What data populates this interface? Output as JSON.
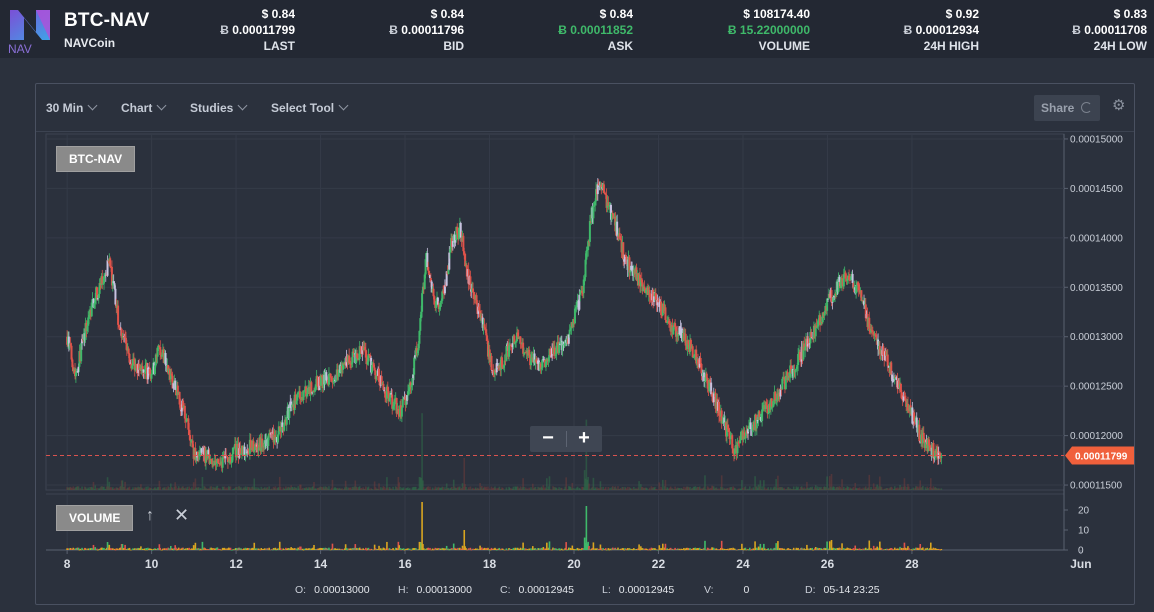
{
  "header": {
    "pair": "BTC-NAV",
    "coin": "NAVCoin",
    "logo_text": "NAV",
    "btc_symbol": "Ƀ",
    "stats": [
      {
        "usd": "$ 0.84",
        "btc": "0.00011799",
        "label": "LAST",
        "green": false
      },
      {
        "usd": "$ 0.84",
        "btc": "0.00011796",
        "label": "BID",
        "green": false
      },
      {
        "usd": "$ 0.84",
        "btc": "0.00011852",
        "label": "ASK",
        "green": true
      },
      {
        "usd": "$ 108174.40",
        "btc": "15.22000000",
        "label": "VOLUME",
        "green": true
      },
      {
        "usd": "$ 0.92",
        "btc": "0.00012934",
        "label": "24H HIGH",
        "green": false
      },
      {
        "usd": "$ 0.83",
        "btc": "0.00011708",
        "label": "24H LOW",
        "green": false
      }
    ]
  },
  "toolbar": {
    "interval": "30 Min",
    "chart": "Chart",
    "studies": "Studies",
    "select_tool": "Select Tool",
    "share": "Share"
  },
  "chart_data": {
    "type": "candlestick",
    "series_label": "BTC-NAV",
    "volume_label": "VOLUME",
    "last_price": 0.00011799,
    "last_price_label": "0.00011799",
    "ylim": [
      0.0001145,
      0.0001505
    ],
    "y_ticks": [
      "0.00011500",
      "0.00012000",
      "0.00012500",
      "0.00013000",
      "0.00013500",
      "0.00014000",
      "0.00014500",
      "0.00015000"
    ],
    "y_tick_values": [
      0.000115,
      0.00012,
      0.000125,
      0.00013,
      0.000135,
      0.00014,
      0.000145,
      0.00015
    ],
    "volume_ylim": [
      0,
      24
    ],
    "volume_ticks": [
      "0",
      "10",
      "20"
    ],
    "volume_tick_values": [
      0,
      10,
      20
    ],
    "x_range_days": [
      7.5,
      31.6
    ],
    "x_ticks": [
      "8",
      "10",
      "12",
      "14",
      "16",
      "18",
      "20",
      "22",
      "24",
      "26",
      "28",
      "Jun"
    ],
    "x_tick_days": [
      8,
      10,
      12,
      14,
      16,
      18,
      20,
      22,
      24,
      26,
      28,
      32
    ],
    "price_path": [
      [
        8.0,
        0.00013
      ],
      [
        8.2,
        0.0001262
      ],
      [
        8.4,
        0.00013
      ],
      [
        8.6,
        0.0001335
      ],
      [
        8.8,
        0.0001352
      ],
      [
        9.0,
        0.0001375
      ],
      [
        9.2,
        0.000132
      ],
      [
        9.5,
        0.0001275
      ],
      [
        10.0,
        0.0001262
      ],
      [
        10.2,
        0.000129
      ],
      [
        10.5,
        0.0001255
      ],
      [
        10.8,
        0.000122
      ],
      [
        11.0,
        0.000118
      ],
      [
        11.3,
        0.000118
      ],
      [
        11.6,
        0.000117
      ],
      [
        12.0,
        0.0001185
      ],
      [
        12.5,
        0.000119
      ],
      [
        13.0,
        0.00012
      ],
      [
        13.3,
        0.000123
      ],
      [
        13.6,
        0.0001245
      ],
      [
        14.0,
        0.0001255
      ],
      [
        14.3,
        0.000126
      ],
      [
        14.6,
        0.0001275
      ],
      [
        15.0,
        0.0001285
      ],
      [
        15.3,
        0.0001265
      ],
      [
        15.6,
        0.000124
      ],
      [
        15.9,
        0.0001225
      ],
      [
        16.1,
        0.0001245
      ],
      [
        16.3,
        0.000129
      ],
      [
        16.5,
        0.000138
      ],
      [
        16.7,
        0.000133
      ],
      [
        16.9,
        0.000134
      ],
      [
        17.1,
        0.0001395
      ],
      [
        17.3,
        0.000141
      ],
      [
        17.5,
        0.000136
      ],
      [
        17.7,
        0.000133
      ],
      [
        17.9,
        0.00013
      ],
      [
        18.1,
        0.000126
      ],
      [
        18.3,
        0.0001275
      ],
      [
        18.6,
        0.00013
      ],
      [
        18.9,
        0.000128
      ],
      [
        19.2,
        0.000127
      ],
      [
        19.5,
        0.0001285
      ],
      [
        19.8,
        0.000129
      ],
      [
        20.0,
        0.000132
      ],
      [
        20.2,
        0.0001345
      ],
      [
        20.4,
        0.000142
      ],
      [
        20.6,
        0.0001455
      ],
      [
        20.8,
        0.0001435
      ],
      [
        21.0,
        0.000141
      ],
      [
        21.2,
        0.000138
      ],
      [
        21.5,
        0.000136
      ],
      [
        21.8,
        0.0001345
      ],
      [
        22.0,
        0.0001335
      ],
      [
        22.3,
        0.000131
      ],
      [
        22.6,
        0.00013
      ],
      [
        23.0,
        0.000127
      ],
      [
        23.3,
        0.000124
      ],
      [
        23.6,
        0.0001205
      ],
      [
        23.8,
        0.0001185
      ],
      [
        24.0,
        0.00012
      ],
      [
        24.3,
        0.0001215
      ],
      [
        24.6,
        0.000123
      ],
      [
        25.0,
        0.0001255
      ],
      [
        25.3,
        0.0001275
      ],
      [
        25.6,
        0.00013
      ],
      [
        25.9,
        0.0001325
      ],
      [
        26.2,
        0.000135
      ],
      [
        26.5,
        0.0001365
      ],
      [
        26.8,
        0.000134
      ],
      [
        27.0,
        0.000131
      ],
      [
        27.3,
        0.0001285
      ],
      [
        27.5,
        0.0001265
      ],
      [
        27.7,
        0.000125
      ],
      [
        28.0,
        0.000122
      ],
      [
        28.2,
        0.00012
      ],
      [
        28.5,
        0.0001185
      ],
      [
        28.7,
        0.000118
      ]
    ],
    "volume_spikes": [
      [
        9.3,
        3
      ],
      [
        16.4,
        24
      ],
      [
        17.4,
        10
      ],
      [
        20.3,
        22
      ],
      [
        26.1,
        5
      ],
      [
        28.2,
        3
      ]
    ],
    "colors": {
      "up": "#3fb96a",
      "down": "#e0534a",
      "neutral": "#c8c2e0",
      "last_line": "#d9534f",
      "last_bg": "#f0603c"
    }
  },
  "ohlc": {
    "o_label": "O:",
    "o": "0.00013000",
    "h_label": "H:",
    "h": "0.00013000",
    "c_label": "C:",
    "c": "0.00012945",
    "l_label": "L:",
    "l": "0.00012945",
    "v_label": "V:",
    "v": "0",
    "d_label": "D:",
    "d": "05-14 23:25"
  }
}
